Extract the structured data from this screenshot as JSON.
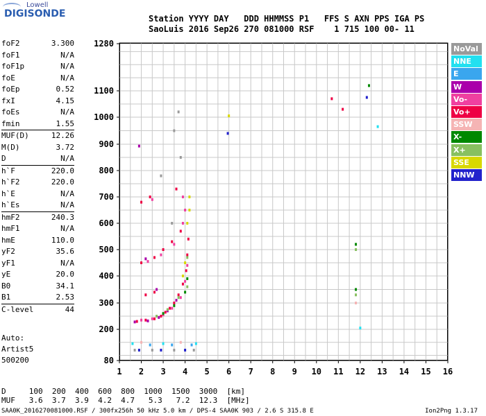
{
  "logo": {
    "top": "Lowell",
    "main": "DIGISONDE"
  },
  "header": {
    "line1": "Station YYYY DAY   DDD HHMMSS P1   FFS S AXN PPS IGA PS",
    "line2": "SaoLuis 2016 Sep26 270 081000 RSF    1 715 100 00- 11"
  },
  "params": [
    {
      "label": "foF2",
      "value": "3.300"
    },
    {
      "label": "foF1",
      "value": "N/A"
    },
    {
      "label": "foF1p",
      "value": "N/A"
    },
    {
      "label": "foE",
      "value": "N/A"
    },
    {
      "label": "foEp",
      "value": "0.52"
    },
    {
      "label": "fxI",
      "value": "4.15"
    },
    {
      "label": "foEs",
      "value": "N/A"
    },
    {
      "label": "fmin",
      "value": "1.55"
    },
    {
      "label": "MUF(D)",
      "value": "12.26"
    },
    {
      "label": "M(D)",
      "value": "3.72"
    },
    {
      "label": "D",
      "value": "N/A"
    },
    {
      "label": "h`F",
      "value": "220.0"
    },
    {
      "label": "h`F2",
      "value": "220.0"
    },
    {
      "label": "h`E",
      "value": "N/A"
    },
    {
      "label": "h`Es",
      "value": "N/A"
    },
    {
      "label": "hmF2",
      "value": "240.3"
    },
    {
      "label": "hmF1",
      "value": "N/A"
    },
    {
      "label": "hmE",
      "value": "110.0"
    },
    {
      "label": "yF2",
      "value": "35.6"
    },
    {
      "label": "yF1",
      "value": "N/A"
    },
    {
      "label": "yE",
      "value": "20.0"
    },
    {
      "label": "B0",
      "value": "34.1"
    },
    {
      "label": "B1",
      "value": "2.53"
    },
    {
      "label": "C-level",
      "value": "44"
    }
  ],
  "auto": {
    "line1": "Auto:",
    "line2": "Artist5",
    "line3": "500200"
  },
  "legend": [
    {
      "label": "NoVal",
      "color": "#9a9a9a"
    },
    {
      "label": "NNE",
      "color": "#22e0f0"
    },
    {
      "label": "E",
      "color": "#3aa6ee"
    },
    {
      "label": "W",
      "color": "#aa00aa"
    },
    {
      "label": "Vo-",
      "color": "#f040a0"
    },
    {
      "label": "Vo+",
      "color": "#ee0044"
    },
    {
      "label": "SSW",
      "color": "#f5b4b4"
    },
    {
      "label": "X-",
      "color": "#008800"
    },
    {
      "label": "X+",
      "color": "#88c060"
    },
    {
      "label": "SSE",
      "color": "#d8d800"
    },
    {
      "label": "NNW",
      "color": "#2222cc"
    }
  ],
  "dtable": {
    "row1": "D     100  200  400  600  800  1000  1500  3000  [km]",
    "row2": "MUF   3.6  3.7  3.9  4.2  4.7   5.3   7.2  12.3  [MHz]"
  },
  "footer": {
    "left": "SAA0K_2016270081000.RSF / 300fx256h 50 kHz 5.0 km / DPS-4 SAA0K 903 / 2.6 S 315.8 E",
    "right": "Ion2Png 1.3.17"
  },
  "chart_data": {
    "type": "scatter",
    "title": "",
    "xlabel": "",
    "ylabel": "",
    "xlim": [
      1,
      16
    ],
    "ylim": [
      80,
      1280
    ],
    "x_ticks": [
      "1",
      "2",
      "3",
      "4",
      "5",
      "6",
      "7",
      "8",
      "9",
      "10",
      "11",
      "12",
      "13",
      "14",
      "15",
      "16"
    ],
    "y_ticks": [
      "80",
      "200",
      "300",
      "400",
      "500",
      "600",
      "700",
      "800",
      "900",
      "1000",
      "1100",
      "1280"
    ],
    "grid": true,
    "series": [
      {
        "name": "Vo+",
        "color": "#ee0044",
        "points": [
          [
            1.8,
            230
          ],
          [
            2.2,
            235
          ],
          [
            2.6,
            240
          ],
          [
            2.9,
            250
          ],
          [
            3.1,
            265
          ],
          [
            3.3,
            280
          ],
          [
            3.5,
            300
          ],
          [
            3.7,
            330
          ],
          [
            3.9,
            370
          ],
          [
            4.05,
            420
          ],
          [
            4.1,
            480
          ],
          [
            4.15,
            540
          ],
          [
            2.0,
            450
          ],
          [
            2.6,
            470
          ],
          [
            3.0,
            500
          ],
          [
            3.4,
            530
          ],
          [
            3.8,
            570
          ],
          [
            2.0,
            680
          ],
          [
            2.4,
            700
          ],
          [
            3.6,
            730
          ],
          [
            10.7,
            1070
          ],
          [
            11.2,
            1030
          ],
          [
            2.2,
            330
          ],
          [
            2.6,
            340
          ]
        ]
      },
      {
        "name": "Vo-",
        "color": "#f040a0",
        "points": [
          [
            2.0,
            235
          ],
          [
            2.5,
            240
          ],
          [
            3.0,
            255
          ],
          [
            3.4,
            280
          ],
          [
            3.8,
            320
          ],
          [
            4.0,
            380
          ],
          [
            4.1,
            440
          ],
          [
            2.3,
            455
          ],
          [
            2.9,
            480
          ],
          [
            3.5,
            520
          ],
          [
            3.9,
            600
          ],
          [
            4.0,
            650
          ],
          [
            2.5,
            690
          ],
          [
            3.9,
            700
          ]
        ]
      },
      {
        "name": "W",
        "color": "#aa00aa",
        "points": [
          [
            1.7,
            228
          ],
          [
            2.3,
            232
          ],
          [
            2.8,
            245
          ],
          [
            3.2,
            270
          ],
          [
            3.6,
            310
          ],
          [
            1.9,
            893
          ],
          [
            2.2,
            465
          ],
          [
            2.7,
            350
          ]
        ]
      },
      {
        "name": "X-",
        "color": "#008800",
        "points": [
          [
            3.0,
            260
          ],
          [
            3.5,
            290
          ],
          [
            4.0,
            340
          ],
          [
            4.1,
            390
          ],
          [
            11.8,
            350
          ],
          [
            11.8,
            520
          ],
          [
            12.4,
            1120
          ]
        ]
      },
      {
        "name": "X+",
        "color": "#88c060",
        "points": [
          [
            2.7,
            250
          ],
          [
            3.2,
            275
          ],
          [
            3.7,
            320
          ],
          [
            4.1,
            360
          ],
          [
            11.8,
            330
          ],
          [
            11.8,
            500
          ],
          [
            4.1,
            470
          ]
        ]
      },
      {
        "name": "SSE",
        "color": "#d8d800",
        "points": [
          [
            3.9,
            400
          ],
          [
            4.1,
            600
          ],
          [
            4.2,
            650
          ],
          [
            4.2,
            700
          ],
          [
            6.0,
            1005
          ],
          [
            4.0,
            450
          ]
        ]
      },
      {
        "name": "NNE",
        "color": "#22e0f0",
        "points": [
          [
            4.5,
            145
          ],
          [
            12.0,
            205
          ],
          [
            12.8,
            965
          ],
          [
            1.6,
            145
          ],
          [
            3.0,
            145
          ]
        ]
      },
      {
        "name": "E",
        "color": "#3aa6ee",
        "points": [
          [
            4.3,
            140
          ],
          [
            2.4,
            140
          ],
          [
            3.4,
            140
          ]
        ]
      },
      {
        "name": "NNW",
        "color": "#2222cc",
        "points": [
          [
            5.95,
            940
          ],
          [
            12.3,
            1075
          ],
          [
            1.9,
            120
          ],
          [
            2.9,
            120
          ],
          [
            4.0,
            120
          ]
        ]
      },
      {
        "name": "SSW",
        "color": "#f5b4b4",
        "points": [
          [
            3.8,
            150
          ],
          [
            2.0,
            150
          ],
          [
            11.8,
            300
          ]
        ]
      },
      {
        "name": "NoVal",
        "color": "#9a9a9a",
        "points": [
          [
            3.5,
            950
          ],
          [
            3.7,
            1020
          ],
          [
            3.4,
            600
          ],
          [
            3.8,
            850
          ],
          [
            2.9,
            780
          ],
          [
            1.7,
            120
          ],
          [
            2.5,
            120
          ],
          [
            3.5,
            120
          ],
          [
            4.4,
            120
          ]
        ]
      }
    ]
  }
}
